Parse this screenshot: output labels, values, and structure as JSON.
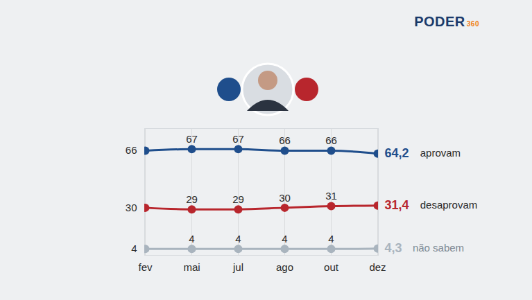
{
  "chart_data": {
    "type": "line",
    "categories": [
      "fev",
      "mai",
      "jul",
      "ago",
      "out",
      "dez"
    ],
    "series": [
      {
        "name": "aprovam",
        "color": "#1f4e8c",
        "values": [
          66,
          67,
          67,
          66,
          66,
          64.2
        ],
        "value_labels": [
          "66",
          "67",
          "67",
          "66",
          "66",
          "64,2"
        ]
      },
      {
        "name": "desaprovam",
        "color": "#b8262d",
        "values": [
          30,
          29,
          29,
          30,
          31,
          31.4
        ],
        "value_labels": [
          "30",
          "29",
          "29",
          "30",
          "31",
          "31,4"
        ]
      },
      {
        "name": "não sabem",
        "color": "#a9b4be",
        "values": [
          4,
          4,
          4,
          4,
          4,
          4.3
        ],
        "value_labels": [
          "4",
          "4",
          "4",
          "4",
          "4",
          "4,3"
        ]
      }
    ],
    "ylim": [
      0,
      80
    ],
    "yticks": [],
    "tick_labels": "x",
    "data_labels": true,
    "marker": "circle",
    "grid": true,
    "annotations": [
      "PODER",
      "360"
    ]
  }
}
